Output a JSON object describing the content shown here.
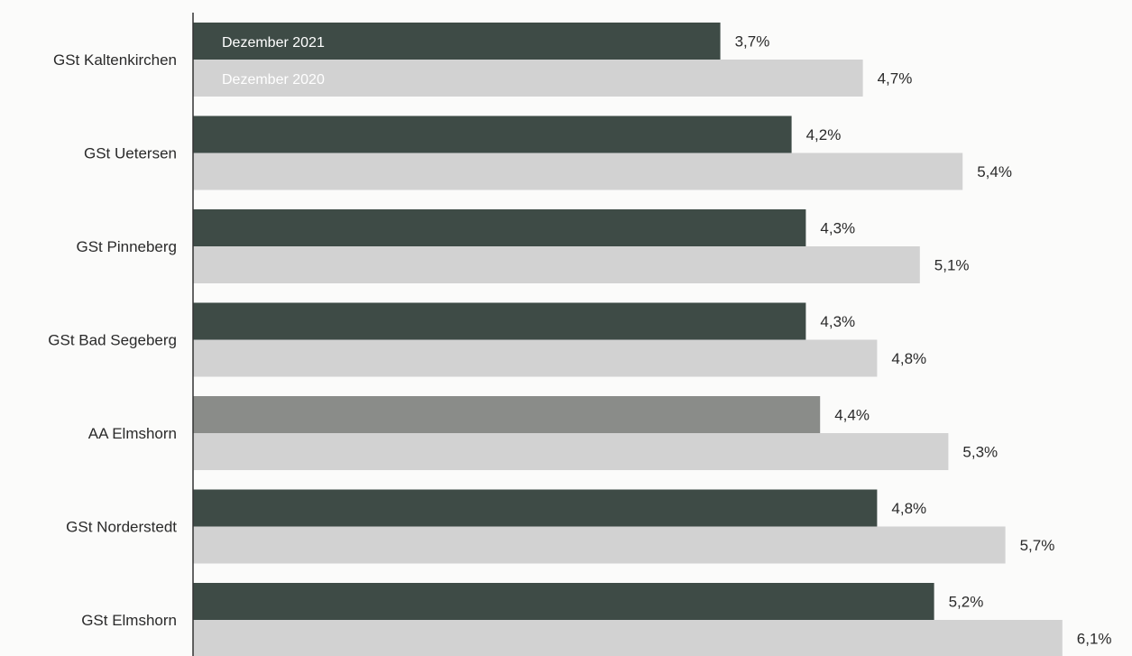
{
  "chart_data": {
    "type": "bar",
    "orientation": "horizontal",
    "categories": [
      "GSt Kaltenkirchen",
      "GSt Uetersen",
      "GSt Pinneberg",
      "GSt Bad Segeberg",
      "AA Elmshorn",
      "GSt Norderstedt",
      "GSt Elmshorn"
    ],
    "series": [
      {
        "name": "Dezember 2021",
        "values": [
          3.7,
          4.2,
          4.3,
          4.3,
          4.4,
          4.8,
          5.2
        ],
        "labels": [
          "3,7%",
          "4,2%",
          "4,3%",
          "4,3%",
          "4,4%",
          "4,8%",
          "5,2%"
        ]
      },
      {
        "name": "Dezember 2020",
        "values": [
          4.7,
          5.4,
          5.1,
          4.8,
          5.3,
          5.7,
          6.1
        ],
        "labels": [
          "4,7%",
          "5,4%",
          "5,1%",
          "4,8%",
          "5,3%",
          "5,7%",
          "6,1%"
        ]
      }
    ],
    "highlight_category": "AA Elmshorn",
    "colors": {
      "series_2021": "#3e4b46",
      "series_2021_highlight": "#8a8c89",
      "series_2020": "#d2d2d2",
      "text": "#2a2a2a",
      "axis": "#333333"
    },
    "legend_placement": "inside-first-bars",
    "xlim": [
      0,
      6.1
    ],
    "grid": false
  }
}
